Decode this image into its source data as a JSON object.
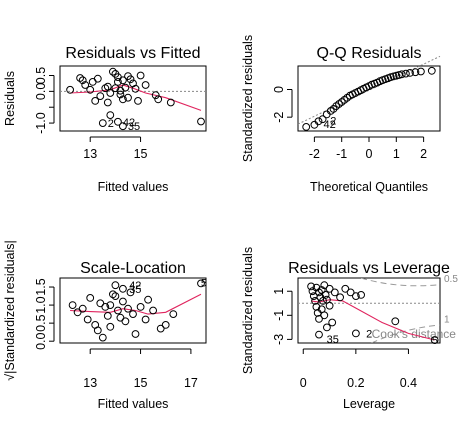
{
  "chart_data": [
    {
      "type": "scatter",
      "title": "Residuals vs Fitted",
      "xlabel": "Fitted values",
      "ylabel": "Residuals",
      "xlim": [
        11.8,
        17.6
      ],
      "ylim": [
        -1.25,
        0.8
      ],
      "xticks": [
        13,
        15
      ],
      "yticks": [
        -1.0,
        -0.5,
        0.0,
        0.5
      ],
      "ytick_labels": [
        "-1.0",
        "",
        "0.0",
        "0.5"
      ],
      "reference": {
        "type": "hline",
        "y": 0,
        "style": "dotted-grey"
      },
      "points": [
        [
          12.6,
          0.42
        ],
        [
          12.7,
          0.35
        ],
        [
          12.8,
          0.2
        ],
        [
          13.0,
          0.05
        ],
        [
          13.1,
          0.3
        ],
        [
          13.2,
          -0.3
        ],
        [
          13.3,
          0.4
        ],
        [
          13.4,
          -0.15
        ],
        [
          13.6,
          0.1
        ],
        [
          13.7,
          -0.35
        ],
        [
          13.7,
          0.15
        ],
        [
          13.8,
          -0.05
        ],
        [
          13.9,
          0.62
        ],
        [
          14.0,
          0.55
        ],
        [
          14.1,
          0.45
        ],
        [
          14.1,
          0.3
        ],
        [
          14.0,
          0.1
        ],
        [
          14.2,
          0.02
        ],
        [
          14.2,
          -0.1
        ],
        [
          14.3,
          -0.25
        ],
        [
          14.3,
          0.35
        ],
        [
          14.4,
          0.12
        ],
        [
          14.5,
          0.48
        ],
        [
          14.6,
          0.38
        ],
        [
          14.5,
          -0.2
        ],
        [
          14.7,
          0.25
        ],
        [
          14.8,
          0.08
        ],
        [
          14.9,
          -0.3
        ],
        [
          15.2,
          0.2
        ],
        [
          15.6,
          -0.12
        ],
        [
          15.7,
          -0.25
        ],
        [
          16.2,
          -0.35
        ],
        [
          17.4,
          -0.95
        ],
        [
          13.5,
          -1.0
        ],
        [
          14.1,
          -0.96
        ],
        [
          14.3,
          -1.1
        ],
        [
          13.8,
          -0.75
        ],
        [
          15.0,
          0.5
        ],
        [
          12.2,
          0.05
        ]
      ],
      "smooth": [
        [
          12.2,
          -0.05
        ],
        [
          13.0,
          -0.02
        ],
        [
          13.8,
          0.05
        ],
        [
          14.3,
          0.2
        ],
        [
          14.7,
          0.1
        ],
        [
          15.2,
          -0.05
        ],
        [
          16.0,
          -0.2
        ],
        [
          17.4,
          -0.6
        ]
      ],
      "labels": [
        {
          "text": "42",
          "x": 14.1,
          "y": -0.96
        },
        {
          "text": "35",
          "x": 14.3,
          "y": -1.1
        },
        {
          "text": "2",
          "x": 13.5,
          "y": -1.0
        }
      ]
    },
    {
      "type": "scatter",
      "title": "Q-Q Residuals",
      "xlabel": "Theoretical Quantiles",
      "ylabel": "Standardized residuals",
      "xlim": [
        -2.6,
        2.6
      ],
      "ylim": [
        -3.0,
        1.7
      ],
      "xticks": [
        -2,
        -1,
        0,
        1,
        2
      ],
      "yticks": [
        -2,
        0
      ],
      "reference": {
        "type": "line",
        "from": [
          -2.6,
          -2.5
        ],
        "to": [
          2.6,
          2.4
        ],
        "style": "dotted-grey"
      },
      "points": [
        [
          -2.3,
          -2.7
        ],
        [
          -2.0,
          -2.55
        ],
        [
          -1.85,
          -2.3
        ],
        [
          -1.7,
          -2.15
        ],
        [
          -1.55,
          -1.8
        ],
        [
          -1.4,
          -1.55
        ],
        [
          -1.3,
          -1.4
        ],
        [
          -1.2,
          -1.2
        ],
        [
          -1.1,
          -1.05
        ],
        [
          -1.0,
          -0.9
        ],
        [
          -0.9,
          -0.75
        ],
        [
          -0.8,
          -0.6
        ],
        [
          -0.7,
          -0.45
        ],
        [
          -0.6,
          -0.35
        ],
        [
          -0.5,
          -0.25
        ],
        [
          -0.4,
          -0.15
        ],
        [
          -0.3,
          -0.05
        ],
        [
          -0.2,
          0.05
        ],
        [
          -0.1,
          0.15
        ],
        [
          0.0,
          0.25
        ],
        [
          0.1,
          0.35
        ],
        [
          0.2,
          0.42
        ],
        [
          0.3,
          0.5
        ],
        [
          0.4,
          0.6
        ],
        [
          0.5,
          0.68
        ],
        [
          0.6,
          0.75
        ],
        [
          0.7,
          0.82
        ],
        [
          0.8,
          0.9
        ],
        [
          0.9,
          0.95
        ],
        [
          1.0,
          1.0
        ],
        [
          1.1,
          1.05
        ],
        [
          1.2,
          1.1
        ],
        [
          1.35,
          1.15
        ],
        [
          1.5,
          1.2
        ],
        [
          1.7,
          1.25
        ],
        [
          1.9,
          1.3
        ],
        [
          2.3,
          1.35
        ]
      ],
      "labels": [
        {
          "text": "2",
          "x": -1.6,
          "y": -2.25
        },
        {
          "text": "42",
          "x": -1.85,
          "y": -2.5
        }
      ]
    },
    {
      "type": "scatter",
      "title": "Scale-Location",
      "xlabel": "Fitted values",
      "ylabel": "√|Standardized residuals|",
      "xlim": [
        11.8,
        17.6
      ],
      "ylim": [
        -0.05,
        1.75
      ],
      "xticks": [
        13,
        15,
        17
      ],
      "yticks": [
        0.0,
        0.5,
        1.0,
        1.5
      ],
      "ytick_labels": [
        "0.0",
        "0.5",
        "1.0",
        "1.5"
      ],
      "points": [
        [
          12.3,
          1.0
        ],
        [
          12.5,
          0.8
        ],
        [
          12.7,
          0.9
        ],
        [
          12.9,
          0.6
        ],
        [
          13.0,
          1.2
        ],
        [
          13.2,
          0.45
        ],
        [
          13.3,
          0.3
        ],
        [
          13.4,
          1.05
        ],
        [
          13.5,
          0.1
        ],
        [
          13.6,
          0.95
        ],
        [
          13.7,
          0.7
        ],
        [
          13.8,
          0.4
        ],
        [
          13.9,
          1.3
        ],
        [
          14.0,
          1.25
        ],
        [
          14.0,
          1.55
        ],
        [
          14.1,
          0.85
        ],
        [
          14.2,
          0.65
        ],
        [
          14.3,
          1.45
        ],
        [
          14.3,
          1.1
        ],
        [
          14.4,
          0.55
        ],
        [
          14.5,
          0.9
        ],
        [
          14.6,
          1.35
        ],
        [
          14.7,
          0.75
        ],
        [
          14.8,
          0.2
        ],
        [
          15.0,
          0.95
        ],
        [
          15.2,
          0.6
        ],
        [
          15.5,
          0.85
        ],
        [
          15.8,
          0.35
        ],
        [
          16.0,
          0.45
        ],
        [
          16.3,
          0.75
        ],
        [
          17.4,
          1.6
        ],
        [
          13.8,
          1.0
        ],
        [
          15.3,
          1.15
        ]
      ],
      "smooth": [
        [
          12.2,
          0.85
        ],
        [
          13.0,
          0.82
        ],
        [
          13.8,
          0.8
        ],
        [
          14.3,
          0.9
        ],
        [
          14.8,
          0.85
        ],
        [
          15.3,
          0.75
        ],
        [
          16.0,
          0.8
        ],
        [
          17.4,
          1.3
        ]
      ],
      "labels": [
        {
          "text": "5",
          "x": 17.2,
          "y": 1.62
        },
        {
          "text": "42",
          "x": 14.35,
          "y": 1.55
        },
        {
          "text": "35",
          "x": 14.35,
          "y": 1.45
        }
      ]
    },
    {
      "type": "scatter",
      "title": "Residuals vs Leverage",
      "xlabel": "Leverage",
      "ylabel": "Standardized residuals",
      "xlim": [
        -0.02,
        0.52
      ],
      "ylim": [
        -3.3,
        2.1
      ],
      "xticks": [
        0.0,
        0.2,
        0.4
      ],
      "yticks": [
        -3,
        -1,
        1
      ],
      "reference": {
        "type": "hline",
        "y": 0,
        "style": "dotted-grey"
      },
      "cooks_levels": [
        "0.5",
        "1"
      ],
      "cooks_label": "Cook's distance",
      "points": [
        [
          0.03,
          1.4
        ],
        [
          0.035,
          1.0
        ],
        [
          0.04,
          0.6
        ],
        [
          0.045,
          0.2
        ],
        [
          0.05,
          -0.3
        ],
        [
          0.05,
          1.3
        ],
        [
          0.055,
          -0.8
        ],
        [
          0.06,
          0.9
        ],
        [
          0.06,
          -1.3
        ],
        [
          0.065,
          0.5
        ],
        [
          0.07,
          1.1
        ],
        [
          0.07,
          -0.5
        ],
        [
          0.075,
          0.2
        ],
        [
          0.08,
          1.5
        ],
        [
          0.08,
          -1.0
        ],
        [
          0.085,
          0.7
        ],
        [
          0.09,
          -2.0
        ],
        [
          0.09,
          0.3
        ],
        [
          0.1,
          1.2
        ],
        [
          0.1,
          -0.2
        ],
        [
          0.11,
          -1.6
        ],
        [
          0.12,
          0.9
        ],
        [
          0.14,
          0.5
        ],
        [
          0.16,
          1.2
        ],
        [
          0.18,
          0.9
        ],
        [
          0.2,
          -2.5
        ],
        [
          0.22,
          0.7
        ],
        [
          0.35,
          -1.5
        ],
        [
          0.5,
          -3.05
        ],
        [
          0.06,
          -2.6
        ],
        [
          0.2,
          0.6
        ]
      ],
      "smooth": [
        [
          0.03,
          0.2
        ],
        [
          0.06,
          0.1
        ],
        [
          0.1,
          0.3
        ],
        [
          0.15,
          0.2
        ],
        [
          0.2,
          -0.4
        ],
        [
          0.3,
          -1.6
        ],
        [
          0.4,
          -2.5
        ],
        [
          0.5,
          -3.05
        ]
      ],
      "labels": [
        {
          "text": "2",
          "x": 0.22,
          "y": -2.5
        },
        {
          "text": "5",
          "x": 0.47,
          "y": -3.05
        },
        {
          "text": "35",
          "x": 0.07,
          "y": -2.95
        }
      ]
    }
  ]
}
